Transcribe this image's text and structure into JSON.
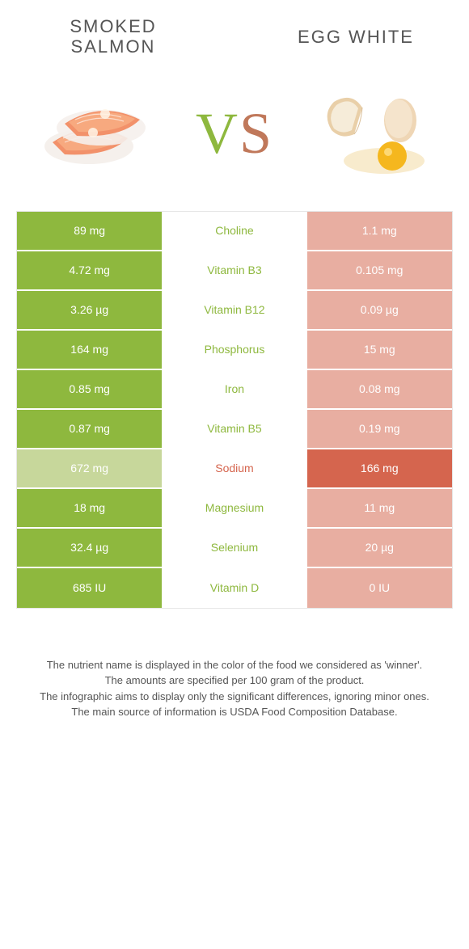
{
  "left_food": {
    "name": "SMOKED SALMON",
    "color": "#8eb83e",
    "loser_bg": "#c7d79b"
  },
  "right_food": {
    "name": "EGG WHITE",
    "color": "#d5654e",
    "loser_bg": "#e8aea1"
  },
  "vs": {
    "v": "V",
    "s": "S",
    "v_color": "#8eb83e",
    "s_color": "#c0785a"
  },
  "nutrient_colors": {
    "left_win": "#8eb83e",
    "right_win": "#d5654e"
  },
  "rows": [
    {
      "left": "89 mg",
      "name": "Choline",
      "right": "1.1 mg",
      "winner": "left"
    },
    {
      "left": "4.72 mg",
      "name": "Vitamin B3",
      "right": "0.105 mg",
      "winner": "left"
    },
    {
      "left": "3.26 µg",
      "name": "Vitamin B12",
      "right": "0.09 µg",
      "winner": "left"
    },
    {
      "left": "164 mg",
      "name": "Phosphorus",
      "right": "15 mg",
      "winner": "left"
    },
    {
      "left": "0.85 mg",
      "name": "Iron",
      "right": "0.08 mg",
      "winner": "left"
    },
    {
      "left": "0.87 mg",
      "name": "Vitamin B5",
      "right": "0.19 mg",
      "winner": "left"
    },
    {
      "left": "672 mg",
      "name": "Sodium",
      "right": "166 mg",
      "winner": "right"
    },
    {
      "left": "18 mg",
      "name": "Magnesium",
      "right": "11 mg",
      "winner": "left"
    },
    {
      "left": "32.4 µg",
      "name": "Selenium",
      "right": "20 µg",
      "winner": "left"
    },
    {
      "left": "685 IU",
      "name": "Vitamin D",
      "right": "0 IU",
      "winner": "left"
    }
  ],
  "footer": {
    "line1": "The nutrient name is displayed in the color of the food we considered as 'winner'.",
    "line2": "The amounts are specified per 100 gram of the product.",
    "line3": "The infographic aims to display only the significant differences, ignoring minor ones.",
    "line4": "The main source of information is USDA Food Composition Database."
  }
}
